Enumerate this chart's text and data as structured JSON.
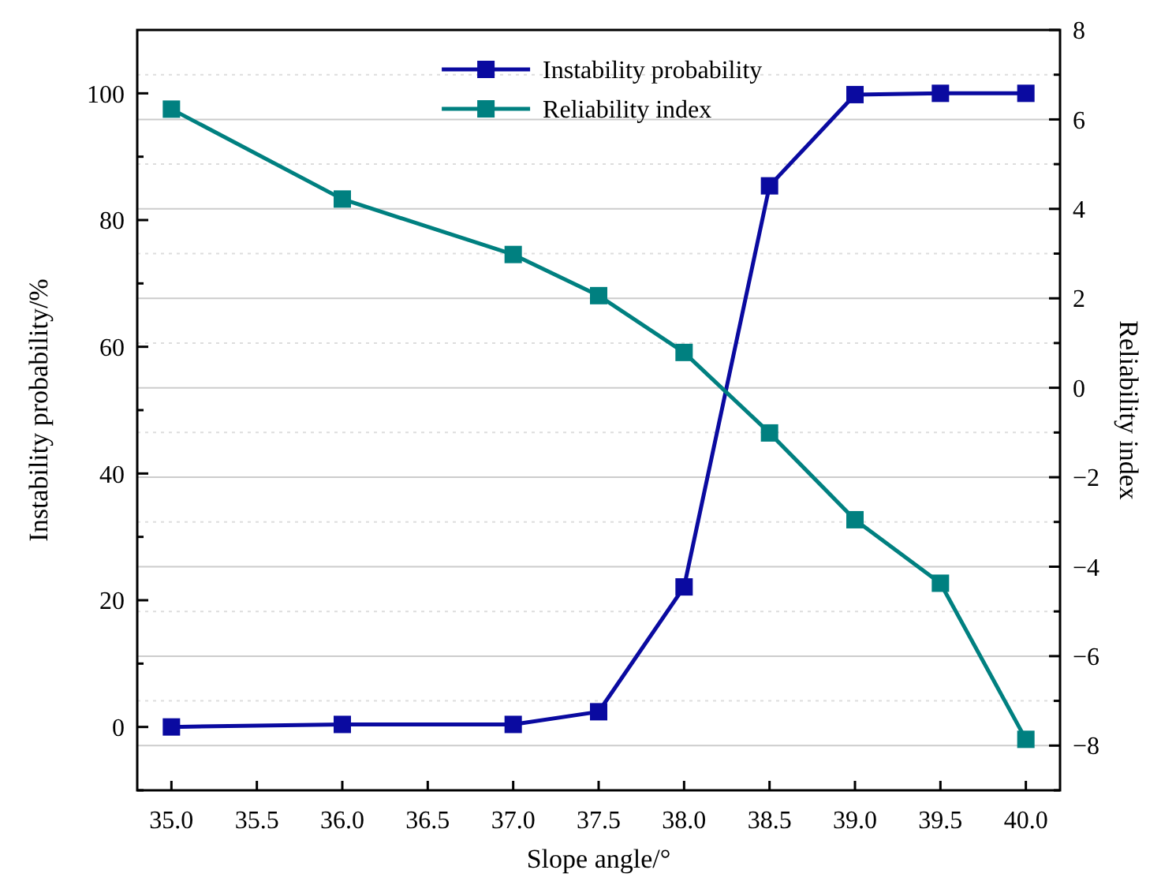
{
  "chart_data": {
    "type": "line",
    "xlabel": "Slope angle/°",
    "ylabel": "Instability probability/%",
    "y2label": "Reliability index",
    "x": [
      35.0,
      36.0,
      37.0,
      37.5,
      38.0,
      38.5,
      39.0,
      39.5,
      40.0
    ],
    "xlim": [
      34.8,
      40.2
    ],
    "xticks": [
      {
        "value": 35,
        "label": "35.0"
      },
      35.5,
      {
        "value": 36,
        "label": "36.0"
      },
      36.5,
      {
        "value": 37,
        "label": "37.0"
      },
      37.5,
      {
        "value": 38,
        "label": "38.0"
      },
      38.5,
      {
        "value": 39,
        "label": "39.0"
      },
      39.5,
      {
        "value": 40,
        "label": "40.0"
      }
    ],
    "ylim": [
      -10,
      110
    ],
    "yticks": [
      {
        "value": -10,
        "label": null
      },
      0,
      {
        "value": 10,
        "label": null
      },
      20,
      {
        "value": 30,
        "label": null
      },
      40,
      {
        "value": 50,
        "label": null
      },
      60,
      {
        "value": 70,
        "label": null
      },
      80,
      {
        "value": 90,
        "label": null
      },
      100
    ],
    "y2lim": [
      -9,
      8
    ],
    "y2ticks": [
      {
        "value": -9,
        "label": null
      },
      {
        "value": -8,
        "label": "−8"
      },
      {
        "value": -7,
        "label": null
      },
      {
        "value": -6,
        "label": "−6"
      },
      {
        "value": -5,
        "label": null
      },
      {
        "value": -4,
        "label": "−4"
      },
      {
        "value": -3,
        "label": null
      },
      {
        "value": -2,
        "label": "−2"
      },
      {
        "value": -1,
        "label": null
      },
      0,
      {
        "value": 1,
        "label": null
      },
      2,
      {
        "value": 3,
        "label": null
      },
      4,
      {
        "value": 5,
        "label": null
      },
      6,
      {
        "value": 7,
        "label": null
      },
      8
    ],
    "grid": true,
    "legend": "top",
    "marker": "square",
    "line_style": "solid",
    "series": [
      {
        "name": "Instability probability",
        "color": "#0a0aa0",
        "values": [
          0,
          0.4,
          0.4,
          2.4,
          22.1,
          85.4,
          99.8,
          100,
          100
        ]
      },
      {
        "name": "Reliability index",
        "color": "#008080",
        "axis": "y2",
        "values": [
          6.23,
          4.22,
          2.98,
          2.06,
          0.79,
          -1.01,
          -2.95,
          -4.37,
          -7.86
        ]
      }
    ]
  }
}
